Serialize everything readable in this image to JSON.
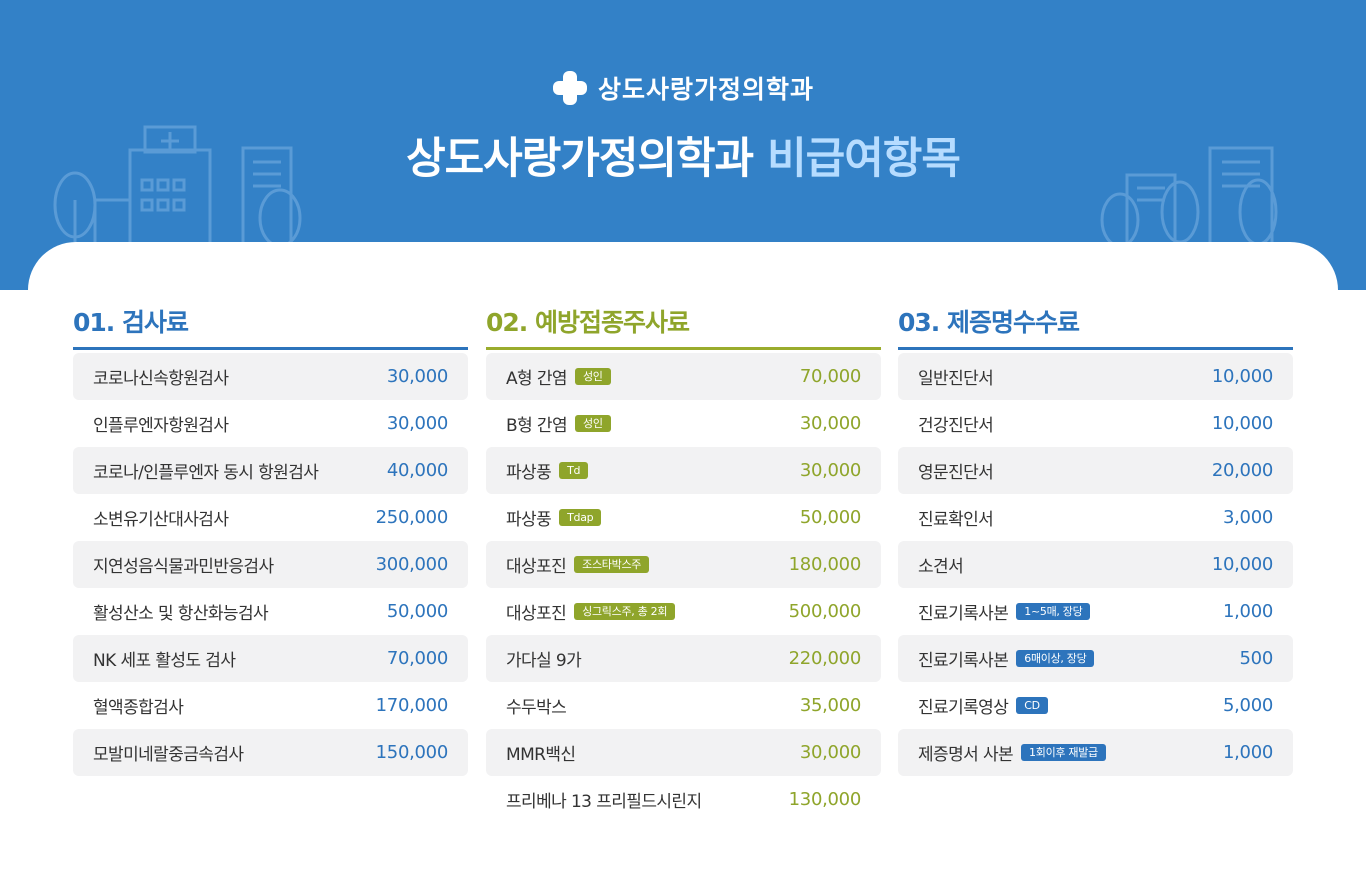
{
  "colors": {
    "header_bg": "#3381c7",
    "blue_accent": "#2d74bc",
    "green_accent": "#8fa52b",
    "title_accent": "#b6dcff"
  },
  "brand": {
    "icon": "medical-cross-icon",
    "name": "상도사랑가정의학과"
  },
  "title": {
    "main": "상도사랑가정의학과",
    "accent": "비급여항목"
  },
  "sections": [
    {
      "heading": "01. 검사료",
      "items": [
        {
          "name": "코로나신속항원검사",
          "price": "30,000"
        },
        {
          "name": "인플루엔자항원검사",
          "price": "30,000"
        },
        {
          "name": "코로나/인플루엔자 동시 항원검사",
          "price": "40,000"
        },
        {
          "name": "소변유기산대사검사",
          "price": "250,000"
        },
        {
          "name": "지연성음식물과민반응검사",
          "price": "300,000"
        },
        {
          "name": "활성산소 및 항산화능검사",
          "price": "50,000"
        },
        {
          "name": "NK 세포 활성도 검사",
          "price": "70,000"
        },
        {
          "name": "혈액종합검사",
          "price": "170,000"
        },
        {
          "name": "모발미네랄중금속검사",
          "price": "150,000"
        }
      ]
    },
    {
      "heading": "02. 예방접종주사료",
      "items": [
        {
          "name": "A형 간염",
          "badge": "성인",
          "price": "70,000"
        },
        {
          "name": "B형 간염",
          "badge": "성인",
          "price": "30,000"
        },
        {
          "name": "파상풍",
          "badge": "Td",
          "price": "30,000"
        },
        {
          "name": "파상풍",
          "badge": "Tdap",
          "price": "50,000"
        },
        {
          "name": "대상포진",
          "badge": "조스타박스주",
          "price": "180,000"
        },
        {
          "name": "대상포진",
          "badge": "싱그릭스주, 총 2회",
          "price": "500,000"
        },
        {
          "name": "가다실 9가",
          "price": "220,000"
        },
        {
          "name": "수두박스",
          "price": "35,000"
        },
        {
          "name": "MMR백신",
          "price": "30,000"
        },
        {
          "name": "프리베나 13 프리필드시린지",
          "price": "130,000"
        }
      ]
    },
    {
      "heading": "03. 제증명수수료",
      "items": [
        {
          "name": "일반진단서",
          "price": "10,000"
        },
        {
          "name": "건강진단서",
          "price": "10,000"
        },
        {
          "name": "영문진단서",
          "price": "20,000"
        },
        {
          "name": "진료확인서",
          "price": "3,000"
        },
        {
          "name": "소견서",
          "price": "10,000"
        },
        {
          "name": "진료기록사본",
          "badge": "1~5매, 장당",
          "price": "1,000"
        },
        {
          "name": "진료기록사본",
          "badge": "6매이상, 장당",
          "price": "500"
        },
        {
          "name": "진료기록영상",
          "badge": "CD",
          "price": "5,000"
        },
        {
          "name": "제증명서 사본",
          "badge": "1회이후 재발급",
          "price": "1,000"
        }
      ]
    }
  ]
}
